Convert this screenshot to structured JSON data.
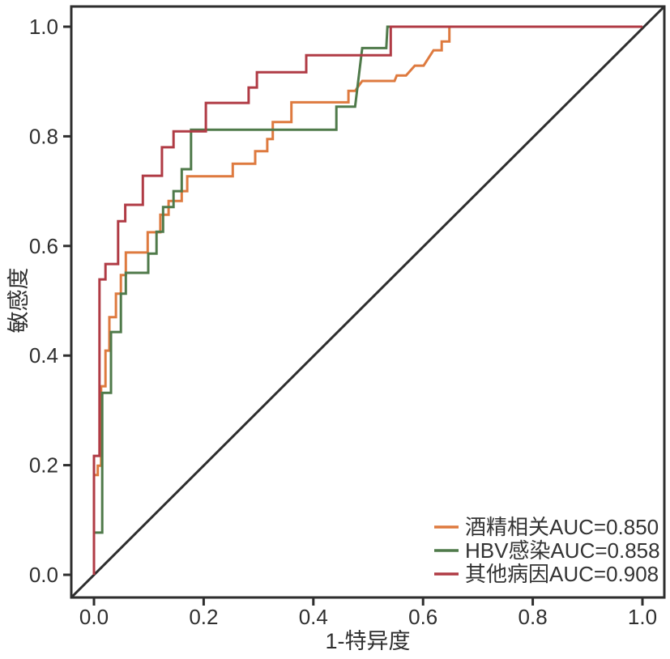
{
  "page": {
    "background": "#ffffff"
  },
  "chart_data": {
    "type": "line",
    "subtype": "roc-step-curves",
    "title": "",
    "xlabel": "1-特异度",
    "ylabel": "敏感度",
    "xlim": [
      -0.041,
      1.04
    ],
    "ylim": [
      -0.041,
      1.037
    ],
    "grid": false,
    "diagonal_reference_line": true,
    "axis_color": "#2e2e2e",
    "text_color": "#2f2f2f",
    "x_tick_values": [
      0,
      0.2,
      0.4,
      0.6,
      0.8,
      1.0
    ],
    "x_tick_labels": [
      "0.0",
      "0.2",
      "0.4",
      "0.6",
      "0.8",
      "1.0"
    ],
    "y_tick_values": [
      0,
      0.2,
      0.4,
      0.6,
      0.8,
      1.0
    ],
    "y_tick_labels": [
      "0.0",
      "0.2",
      "0.4",
      "0.6",
      "0.8",
      "1.0"
    ],
    "legend": {
      "position": "bottom-right",
      "frame": false
    },
    "series": [
      {
        "name": "酒精相关",
        "label": "酒精相关AUC=0.850",
        "auc": 0.85,
        "color": "#DE7A3F",
        "points": [
          [
            0,
            0
          ],
          [
            0,
            0.182
          ],
          [
            0.007,
            0.182
          ],
          [
            0.007,
            0.199
          ],
          [
            0.013,
            0.199
          ],
          [
            0.013,
            0.344
          ],
          [
            0.021,
            0.344
          ],
          [
            0.021,
            0.409
          ],
          [
            0.028,
            0.409
          ],
          [
            0.028,
            0.47
          ],
          [
            0.04,
            0.47
          ],
          [
            0.04,
            0.513
          ],
          [
            0.049,
            0.513
          ],
          [
            0.049,
            0.547
          ],
          [
            0.058,
            0.547
          ],
          [
            0.058,
            0.588
          ],
          [
            0.098,
            0.588
          ],
          [
            0.098,
            0.625
          ],
          [
            0.121,
            0.625
          ],
          [
            0.121,
            0.657
          ],
          [
            0.136,
            0.657
          ],
          [
            0.136,
            0.682
          ],
          [
            0.16,
            0.682
          ],
          [
            0.16,
            0.7
          ],
          [
            0.17,
            0.7
          ],
          [
            0.17,
            0.727
          ],
          [
            0.253,
            0.727
          ],
          [
            0.253,
            0.75
          ],
          [
            0.294,
            0.75
          ],
          [
            0.294,
            0.773
          ],
          [
            0.316,
            0.773
          ],
          [
            0.316,
            0.795
          ],
          [
            0.326,
            0.795
          ],
          [
            0.326,
            0.826
          ],
          [
            0.36,
            0.826
          ],
          [
            0.36,
            0.862
          ],
          [
            0.464,
            0.862
          ],
          [
            0.464,
            0.883
          ],
          [
            0.476,
            0.883
          ],
          [
            0.489,
            0.901
          ],
          [
            0.548,
            0.901
          ],
          [
            0.552,
            0.911
          ],
          [
            0.569,
            0.911
          ],
          [
            0.585,
            0.929
          ],
          [
            0.601,
            0.929
          ],
          [
            0.619,
            0.957
          ],
          [
            0.634,
            0.957
          ],
          [
            0.634,
            0.973
          ],
          [
            0.648,
            0.973
          ],
          [
            0.648,
            1.0
          ],
          [
            1.0,
            1.0
          ]
        ]
      },
      {
        "name": "HBV感染",
        "label": "HBV感染AUC=0.858",
        "auc": 0.858,
        "color": "#4F7A4A",
        "points": [
          [
            0,
            0
          ],
          [
            0,
            0.077
          ],
          [
            0.015,
            0.077
          ],
          [
            0.015,
            0.332
          ],
          [
            0.031,
            0.332
          ],
          [
            0.031,
            0.443
          ],
          [
            0.049,
            0.443
          ],
          [
            0.049,
            0.513
          ],
          [
            0.058,
            0.513
          ],
          [
            0.058,
            0.551
          ],
          [
            0.099,
            0.551
          ],
          [
            0.099,
            0.586
          ],
          [
            0.114,
            0.586
          ],
          [
            0.114,
            0.626
          ],
          [
            0.126,
            0.626
          ],
          [
            0.126,
            0.671
          ],
          [
            0.145,
            0.671
          ],
          [
            0.145,
            0.7
          ],
          [
            0.16,
            0.7
          ],
          [
            0.16,
            0.74
          ],
          [
            0.177,
            0.74
          ],
          [
            0.177,
            0.812
          ],
          [
            0.442,
            0.812
          ],
          [
            0.442,
            0.854
          ],
          [
            0.476,
            0.854
          ],
          [
            0.489,
            0.961
          ],
          [
            0.533,
            0.961
          ],
          [
            0.535,
            1.0
          ],
          [
            1.0,
            1.0
          ]
        ]
      },
      {
        "name": "其他病因",
        "label": "其他病因AUC=0.908",
        "auc": 0.908,
        "color": "#B03B45",
        "points": [
          [
            0,
            0
          ],
          [
            0,
            0.217
          ],
          [
            0.01,
            0.217
          ],
          [
            0.01,
            0.539
          ],
          [
            0.021,
            0.539
          ],
          [
            0.021,
            0.567
          ],
          [
            0.044,
            0.567
          ],
          [
            0.044,
            0.645
          ],
          [
            0.057,
            0.645
          ],
          [
            0.057,
            0.675
          ],
          [
            0.089,
            0.675
          ],
          [
            0.089,
            0.728
          ],
          [
            0.124,
            0.728
          ],
          [
            0.124,
            0.78
          ],
          [
            0.145,
            0.78
          ],
          [
            0.145,
            0.809
          ],
          [
            0.204,
            0.809
          ],
          [
            0.204,
            0.861
          ],
          [
            0.282,
            0.861
          ],
          [
            0.282,
            0.889
          ],
          [
            0.297,
            0.889
          ],
          [
            0.297,
            0.917
          ],
          [
            0.387,
            0.917
          ],
          [
            0.387,
            0.948
          ],
          [
            0.541,
            0.948
          ],
          [
            0.541,
            1.0
          ],
          [
            1.0,
            1.0
          ]
        ]
      }
    ]
  }
}
